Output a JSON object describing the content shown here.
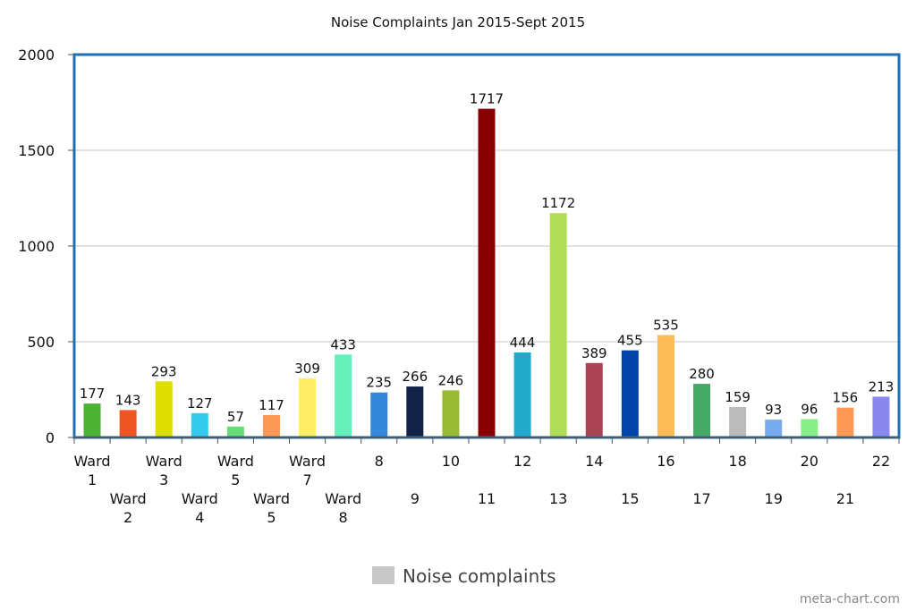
{
  "chart_data": {
    "type": "bar",
    "title": "Noise Complaints Jan 2015-Sept 2015",
    "xlabel": "",
    "ylabel": "",
    "ylim": [
      0,
      2000
    ],
    "yticks": [
      0,
      500,
      1000,
      1500,
      2000
    ],
    "grid": true,
    "legend_position": "bottom-center",
    "categories": [
      [
        "Ward",
        "1"
      ],
      [
        "Ward",
        "2"
      ],
      [
        "Ward",
        "3"
      ],
      [
        "Ward",
        "4"
      ],
      [
        "Ward",
        "5"
      ],
      [
        "Ward",
        "5"
      ],
      [
        "Ward",
        "7"
      ],
      [
        "Ward",
        "8"
      ],
      [
        "8"
      ],
      [
        "9"
      ],
      [
        "10"
      ],
      [
        "11"
      ],
      [
        "12"
      ],
      [
        "13"
      ],
      [
        "14"
      ],
      [
        "15"
      ],
      [
        "16"
      ],
      [
        "17"
      ],
      [
        "18"
      ],
      [
        "19"
      ],
      [
        "20"
      ],
      [
        "21"
      ],
      [
        "22"
      ]
    ],
    "series": [
      {
        "name": "Noise complaints",
        "legend_color": "#c8c8c8",
        "values": [
          177,
          143,
          293,
          127,
          57,
          117,
          309,
          433,
          235,
          266,
          246,
          1717,
          444,
          1172,
          389,
          455,
          535,
          280,
          159,
          93,
          96,
          156,
          213
        ],
        "colors": [
          "#4cb232",
          "#ee5522",
          "#dddd00",
          "#33ccee",
          "#66dd77",
          "#ff9955",
          "#ffee66",
          "#66eebb",
          "#3388dd",
          "#112244",
          "#99bb33",
          "#880000",
          "#22aacc",
          "#b0dd55",
          "#aa4455",
          "#0044aa",
          "#ffbb55",
          "#44aa66",
          "#bbbbbb",
          "#77aaee",
          "#88ee88",
          "#ff9955",
          "#8888ee"
        ]
      }
    ]
  },
  "watermark": "meta-chart.com"
}
